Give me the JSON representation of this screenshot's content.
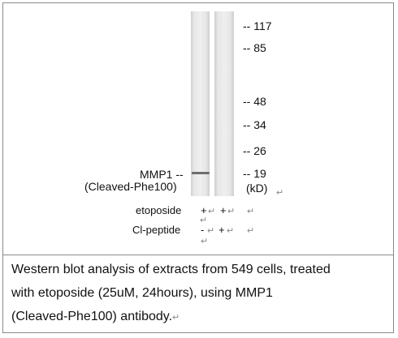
{
  "markers": [
    {
      "label": "-- 117"
    },
    {
      "label": "-- 85"
    },
    {
      "label": "-- 48"
    },
    {
      "label": "-- 34"
    },
    {
      "label": "-- 26"
    },
    {
      "label": "-- 19"
    }
  ],
  "unit": "(kD)",
  "paragraph_mark": "↵",
  "band_label": {
    "line1": "MMP1 --",
    "line2": "(Cleaved-Phe100)"
  },
  "rows": {
    "etoposide": {
      "label": "etoposide",
      "lane1": "+",
      "lane2": "+"
    },
    "cl_peptide": {
      "label": "Cl-peptide",
      "lane1": "-",
      "lane2": "+"
    }
  },
  "caption": {
    "line1": "Western blot analysis of extracts from 549 cells, treated",
    "line2": "with etoposide (25uM, 24hours), using MMP1",
    "line3": "(Cleaved-Phe100) antibody."
  }
}
